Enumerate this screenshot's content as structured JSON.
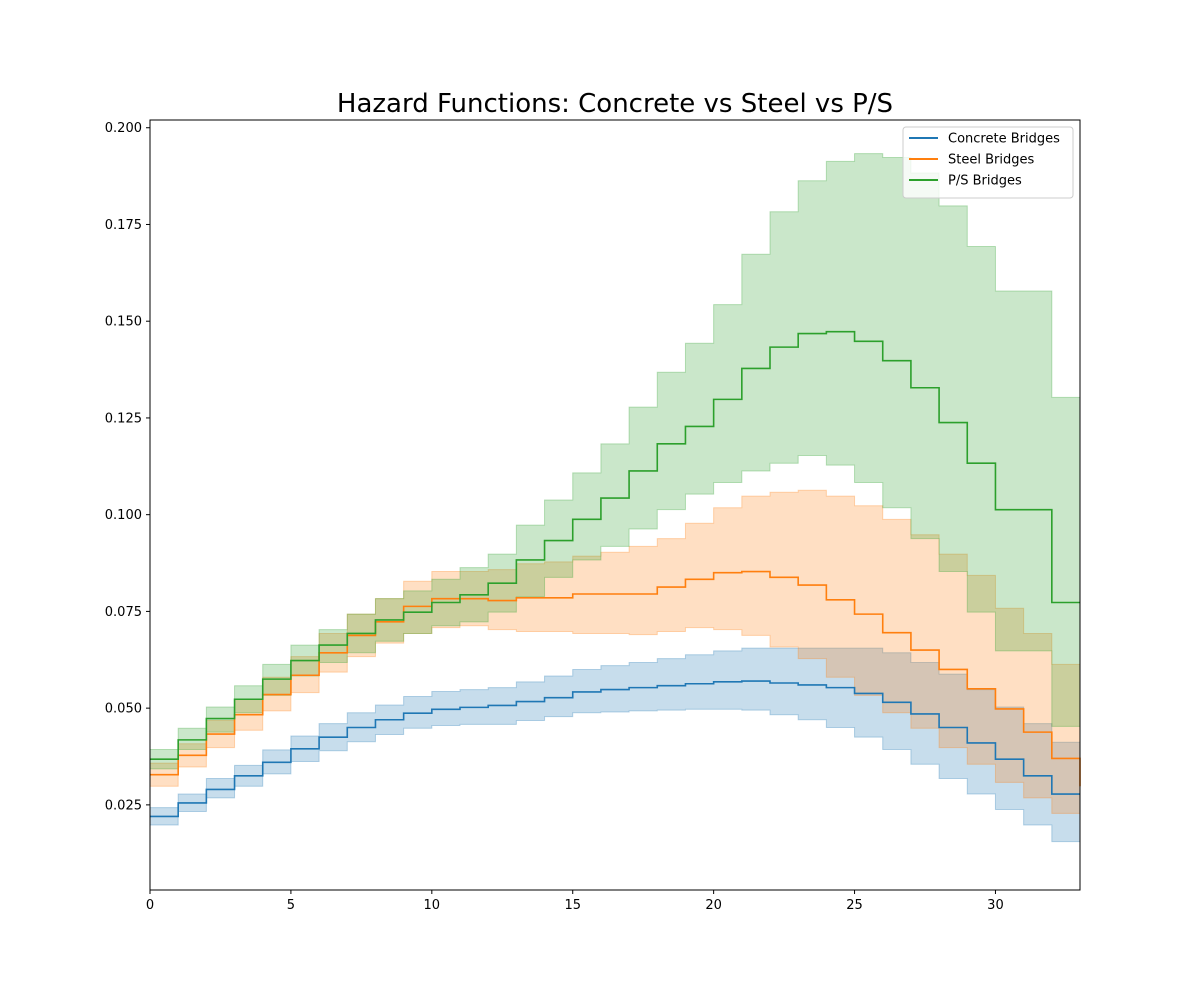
{
  "chart_data": {
    "type": "line",
    "title": "Hazard Functions: Concrete vs Steel vs P/S",
    "xlabel": "",
    "ylabel": "",
    "xlim": [
      0,
      33
    ],
    "ylim": [
      0.003,
      0.202
    ],
    "x_ticks": [
      "0",
      "5",
      "10",
      "15",
      "20",
      "25",
      "30"
    ],
    "y_ticks": [
      "0.025",
      "0.050",
      "0.075",
      "0.100",
      "0.125",
      "0.150",
      "0.175",
      "0.200"
    ],
    "grid": false,
    "legend_position": "top-right",
    "x": [
      0,
      1,
      2,
      3,
      4,
      5,
      6,
      7,
      8,
      9,
      10,
      11,
      12,
      13,
      14,
      15,
      16,
      17,
      18,
      19,
      20,
      21,
      22,
      23,
      24,
      25,
      26,
      27,
      28,
      29,
      30,
      31,
      32,
      33
    ],
    "series": [
      {
        "name": "Concrete Bridges",
        "color": "#1f77b4",
        "values": [
          0.022,
          0.0255,
          0.029,
          0.0325,
          0.036,
          0.0395,
          0.0425,
          0.045,
          0.047,
          0.0487,
          0.0497,
          0.0502,
          0.0507,
          0.0517,
          0.0527,
          0.0542,
          0.0548,
          0.0553,
          0.0558,
          0.0563,
          0.0568,
          0.057,
          0.0565,
          0.056,
          0.0553,
          0.0538,
          0.0515,
          0.0485,
          0.045,
          0.041,
          0.0368,
          0.0325,
          0.0278,
          0.0278
        ],
        "lower": [
          0.0198,
          0.0233,
          0.0268,
          0.0298,
          0.033,
          0.0362,
          0.039,
          0.0413,
          0.0432,
          0.0448,
          0.0455,
          0.0458,
          0.0458,
          0.0468,
          0.0478,
          0.0488,
          0.049,
          0.0493,
          0.0495,
          0.0497,
          0.0497,
          0.0495,
          0.0483,
          0.047,
          0.045,
          0.0425,
          0.0393,
          0.0355,
          0.0318,
          0.0278,
          0.0238,
          0.0198,
          0.0155,
          0.0155
        ],
        "upper": [
          0.0243,
          0.0278,
          0.0318,
          0.0352,
          0.0392,
          0.0428,
          0.046,
          0.0488,
          0.0508,
          0.053,
          0.0543,
          0.0548,
          0.0553,
          0.0568,
          0.0583,
          0.06,
          0.061,
          0.0618,
          0.0628,
          0.0638,
          0.0648,
          0.0655,
          0.0655,
          0.0655,
          0.0655,
          0.0655,
          0.0643,
          0.0618,
          0.0588,
          0.0548,
          0.0503,
          0.046,
          0.0412,
          0.0412
        ]
      },
      {
        "name": "Steel Bridges",
        "color": "#ff7f0e",
        "values": [
          0.0328,
          0.0378,
          0.0433,
          0.0483,
          0.0535,
          0.0585,
          0.0643,
          0.0688,
          0.0723,
          0.0763,
          0.0783,
          0.0783,
          0.0778,
          0.0785,
          0.0785,
          0.0795,
          0.0795,
          0.0795,
          0.0813,
          0.0833,
          0.085,
          0.0853,
          0.0838,
          0.0818,
          0.078,
          0.0743,
          0.0695,
          0.065,
          0.06,
          0.055,
          0.0498,
          0.0438,
          0.037,
          0.0298
        ],
        "lower": [
          0.0298,
          0.0348,
          0.0398,
          0.0443,
          0.0493,
          0.054,
          0.0593,
          0.0633,
          0.0668,
          0.0693,
          0.0708,
          0.0713,
          0.0703,
          0.0698,
          0.0698,
          0.0693,
          0.0693,
          0.069,
          0.0698,
          0.0708,
          0.0703,
          0.0688,
          0.0658,
          0.0628,
          0.058,
          0.0533,
          0.0488,
          0.0448,
          0.0398,
          0.0355,
          0.0308,
          0.0268,
          0.0228,
          0.0168
        ],
        "upper": [
          0.0358,
          0.0408,
          0.0468,
          0.0523,
          0.058,
          0.0633,
          0.0693,
          0.0743,
          0.0783,
          0.0828,
          0.0853,
          0.0853,
          0.0858,
          0.0873,
          0.0878,
          0.0893,
          0.0903,
          0.0918,
          0.0938,
          0.0978,
          0.1018,
          0.1048,
          0.1058,
          0.1063,
          0.1048,
          0.1023,
          0.0988,
          0.0948,
          0.0898,
          0.0843,
          0.0758,
          0.0693,
          0.0613,
          0.0453
        ]
      },
      {
        "name": "P/S Bridges",
        "color": "#2ca02c",
        "values": [
          0.0368,
          0.0418,
          0.0473,
          0.0523,
          0.0575,
          0.0623,
          0.0663,
          0.0693,
          0.0728,
          0.0748,
          0.0773,
          0.0793,
          0.0823,
          0.0883,
          0.0933,
          0.0988,
          0.1043,
          0.1113,
          0.1183,
          0.1228,
          0.1298,
          0.1378,
          0.1433,
          0.1468,
          0.1473,
          0.1448,
          0.1398,
          0.1328,
          0.1238,
          0.1133,
          0.1013,
          0.1013,
          0.0773,
          0.0773
        ],
        "lower": [
          0.0343,
          0.0393,
          0.0438,
          0.0488,
          0.0533,
          0.0583,
          0.0618,
          0.0643,
          0.0673,
          0.0693,
          0.0713,
          0.0723,
          0.0748,
          0.0788,
          0.0838,
          0.0883,
          0.0918,
          0.0963,
          0.1013,
          0.1053,
          0.1083,
          0.1113,
          0.1133,
          0.1153,
          0.1128,
          0.1083,
          0.1018,
          0.0938,
          0.0853,
          0.0748,
          0.0648,
          0.0648,
          0.0453,
          0.0453
        ],
        "upper": [
          0.0393,
          0.0448,
          0.0503,
          0.0558,
          0.0613,
          0.0663,
          0.0703,
          0.0743,
          0.0783,
          0.0803,
          0.0833,
          0.0863,
          0.0898,
          0.0973,
          0.1038,
          0.1108,
          0.1183,
          0.1278,
          0.1368,
          0.1443,
          0.1543,
          0.1673,
          0.1783,
          0.1863,
          0.1913,
          0.1933,
          0.1923,
          0.1883,
          0.1798,
          0.1693,
          0.1578,
          0.1578,
          0.1303,
          0.1303
        ]
      }
    ]
  }
}
